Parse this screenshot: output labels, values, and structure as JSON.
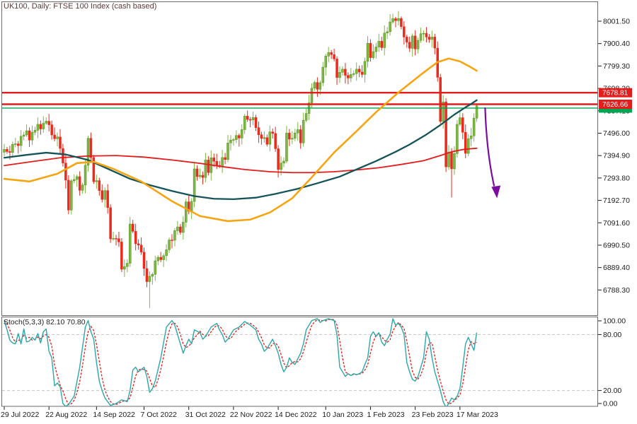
{
  "window": {
    "title": "UK100, Daily:  FTSE 100 Index (cash based)"
  },
  "stoch": {
    "label": "Stoch(5,3,3) 82.10 70.80"
  },
  "colors": {
    "bull": "#7db843",
    "bull_border": "#538c1e",
    "bear": "#e92a1c",
    "ma_orange": "#f7a411",
    "ma_teal": "#155459",
    "ma_red": "#e31c1c",
    "level": "#e31c1c",
    "bid": "#00a651",
    "stoch_k": "#2ba8a8",
    "stoch_d": "#e31c1c",
    "grid": "#c4c4c4",
    "border": "#6b6b6b",
    "text": "#1b1b1b",
    "arrow": "#7b0ca1",
    "tag_text": "#ffffff"
  },
  "price_axis": {
    "ticks": [
      "8001.50",
      "7900.40",
      "7799.30",
      "7698.20",
      "7597.10",
      "7496.00",
      "7394.90",
      "7293.80",
      "7192.70",
      "7091.60",
      "6990.50",
      "6889.40",
      "6788.30"
    ]
  },
  "stoch_axis": {
    "ticks": [
      {
        "label": "100.00",
        "v": 100
      },
      {
        "label": "80.00",
        "v": 80
      },
      {
        "label": "20.00",
        "v": 20
      },
      {
        "label": "0.00",
        "v": 0
      }
    ]
  },
  "time_axis": [
    {
      "label": "29 Jul 2022",
      "i": 0
    },
    {
      "label": "22 Aug 2022",
      "i": 16
    },
    {
      "label": "14 Sep 2022",
      "i": 33
    },
    {
      "label": "7 Oct 2022",
      "i": 50
    },
    {
      "label": "31 Oct 2022",
      "i": 66
    },
    {
      "label": "22 Nov 2022",
      "i": 82
    },
    {
      "label": "14 Dec 2022",
      "i": 98
    },
    {
      "label": "10 Jan 2023",
      "i": 115
    },
    {
      "label": "1 Feb 2023",
      "i": 131
    },
    {
      "label": "23 Feb 2023",
      "i": 147
    },
    {
      "label": "17 Mar 2023",
      "i": 163
    }
  ],
  "chart_data": [
    {
      "type": "candlestick",
      "symbol": "UK100",
      "timeframe": "Daily",
      "description": "FTSE 100 Index (cash based)",
      "ylim": [
        6672,
        8090
      ],
      "first_open": 7410,
      "closes": [
        7423,
        7413,
        7409,
        7446,
        7448,
        7440,
        7482,
        7488,
        7507,
        7465,
        7500,
        7509,
        7536,
        7515,
        7541,
        7550,
        7534,
        7488,
        7471,
        7479,
        7427,
        7361,
        7284,
        7149,
        7281,
        7287,
        7300,
        7238,
        7262,
        7351,
        7473,
        7386,
        7277,
        7282,
        7237,
        7197,
        7237,
        7160,
        7019,
        7021,
        7020,
        7005,
        6882,
        6894,
        6909,
        7086,
        7053,
        6997,
        6991,
        6959,
        6885,
        6826,
        6850,
        6859,
        6920,
        6936,
        6925,
        6943,
        6970,
        7014,
        7013,
        7056,
        7073,
        7048,
        7094,
        7186,
        7144,
        7188,
        7335,
        7300,
        7306,
        7296,
        7375,
        7318,
        7385,
        7369,
        7351,
        7346,
        7386,
        7377,
        7452,
        7465,
        7467,
        7486,
        7474,
        7512,
        7573,
        7558,
        7556,
        7567,
        7521,
        7489,
        7472,
        7476,
        7446,
        7502,
        7495,
        7426,
        7332,
        7361,
        7370,
        7497,
        7469,
        7473,
        7497,
        7512,
        7452,
        7554,
        7585,
        7633,
        7699,
        7725,
        7694,
        7724,
        7794,
        7844,
        7860,
        7851,
        7831,
        7747,
        7771,
        7785,
        7757,
        7745,
        7761,
        7765,
        7785,
        7772,
        7761,
        7820,
        7902,
        7837,
        7864,
        7885,
        7911,
        7882,
        7948,
        7954,
        7998,
        8013,
        8004,
        8014,
        7977,
        7930,
        7907,
        7879,
        7935,
        7876,
        7915,
        7945,
        7947,
        7930,
        7919,
        7930,
        7880,
        7748,
        7549,
        7637,
        7344,
        7410,
        7335,
        7404,
        7536,
        7566,
        7500,
        7405,
        7471,
        7484,
        7564,
        7620
      ],
      "wick_overrides": {
        "23": {
          "low": 7130
        },
        "52": {
          "low": 6707
        },
        "141": {
          "high": 8047
        },
        "160": {
          "low": 7206
        }
      },
      "h_levels": [
        7678.81,
        7626.66
      ],
      "price_tag_labels": [
        "7678.81",
        "7626.66"
      ],
      "bid_line": 7609.4,
      "ma": {
        "orange": [
          [
            0,
            7290
          ],
          [
            9,
            7278
          ],
          [
            19,
            7313
          ],
          [
            26,
            7361
          ],
          [
            32,
            7367
          ],
          [
            39,
            7335
          ],
          [
            49,
            7278
          ],
          [
            60,
            7189
          ],
          [
            70,
            7122
          ],
          [
            80,
            7099
          ],
          [
            88,
            7106
          ],
          [
            95,
            7138
          ],
          [
            103,
            7202
          ],
          [
            110,
            7297
          ],
          [
            118,
            7409
          ],
          [
            126,
            7505
          ],
          [
            133,
            7591
          ],
          [
            141,
            7680
          ],
          [
            149,
            7760
          ],
          [
            155,
            7817
          ],
          [
            159,
            7833
          ],
          [
            163,
            7820
          ],
          [
            166,
            7800
          ],
          [
            169,
            7778
          ]
        ],
        "teal": [
          [
            0,
            7385
          ],
          [
            8,
            7398
          ],
          [
            15,
            7408
          ],
          [
            22,
            7400
          ],
          [
            30,
            7375
          ],
          [
            38,
            7330
          ],
          [
            45,
            7290
          ],
          [
            52,
            7262
          ],
          [
            60,
            7235
          ],
          [
            68,
            7212
          ],
          [
            75,
            7200
          ],
          [
            82,
            7198
          ],
          [
            90,
            7205
          ],
          [
            97,
            7222
          ],
          [
            105,
            7245
          ],
          [
            112,
            7270
          ],
          [
            120,
            7300
          ],
          [
            127,
            7338
          ],
          [
            133,
            7370
          ],
          [
            140,
            7412
          ],
          [
            145,
            7445
          ],
          [
            151,
            7490
          ],
          [
            156,
            7533
          ],
          [
            161,
            7580
          ],
          [
            165,
            7613
          ],
          [
            167,
            7628
          ],
          [
            169,
            7645
          ]
        ],
        "red": [
          [
            0,
            7350
          ],
          [
            10,
            7368
          ],
          [
            20,
            7385
          ],
          [
            30,
            7393
          ],
          [
            40,
            7395
          ],
          [
            50,
            7388
          ],
          [
            60,
            7375
          ],
          [
            70,
            7360
          ],
          [
            78,
            7345
          ],
          [
            86,
            7332
          ],
          [
            95,
            7322
          ],
          [
            103,
            7318
          ],
          [
            110,
            7318
          ],
          [
            118,
            7322
          ],
          [
            126,
            7330
          ],
          [
            134,
            7340
          ],
          [
            142,
            7355
          ],
          [
            150,
            7372
          ],
          [
            156,
            7395
          ],
          [
            160,
            7412
          ],
          [
            164,
            7422
          ],
          [
            167,
            7426
          ],
          [
            169,
            7428
          ]
        ]
      },
      "arrow": {
        "from": {
          "i": 172,
          "price": 7612
        },
        "to": {
          "i": 176,
          "price": 7212
        }
      }
    },
    {
      "type": "line",
      "name": "Stoch(5,3,3)",
      "k_current": 82.1,
      "d_current": 70.8,
      "levels": [
        100,
        80,
        20,
        0
      ],
      "k_anchors": [
        [
          0,
          95
        ],
        [
          1,
          85
        ],
        [
          2,
          74
        ],
        [
          3,
          71
        ],
        [
          4,
          70
        ],
        [
          5,
          81
        ],
        [
          6,
          70
        ],
        [
          7,
          86
        ],
        [
          8,
          72
        ],
        [
          9,
          73
        ],
        [
          10,
          77
        ],
        [
          11,
          74
        ],
        [
          12,
          81
        ],
        [
          13,
          71
        ],
        [
          14,
          83
        ],
        [
          15,
          86
        ],
        [
          16,
          62
        ],
        [
          17,
          55
        ],
        [
          18,
          25
        ],
        [
          19,
          28
        ],
        [
          20,
          24
        ],
        [
          21,
          6
        ],
        [
          22,
          3
        ],
        [
          23,
          5
        ],
        [
          25,
          14
        ],
        [
          27,
          45
        ],
        [
          29,
          88
        ],
        [
          30,
          95
        ],
        [
          31,
          83
        ],
        [
          32,
          75
        ],
        [
          33,
          50
        ],
        [
          34,
          30
        ],
        [
          35,
          20
        ],
        [
          36,
          12
        ],
        [
          38,
          4
        ],
        [
          40,
          6
        ],
        [
          42,
          10
        ],
        [
          44,
          8
        ],
        [
          45,
          20
        ],
        [
          46,
          42
        ],
        [
          47,
          45
        ],
        [
          48,
          40
        ],
        [
          50,
          45
        ],
        [
          51,
          35
        ],
        [
          52,
          18
        ],
        [
          53,
          22
        ],
        [
          54,
          30
        ],
        [
          56,
          55
        ],
        [
          58,
          88
        ],
        [
          60,
          95
        ],
        [
          61,
          90
        ],
        [
          62,
          80
        ],
        [
          63,
          70
        ],
        [
          64,
          60
        ],
        [
          65,
          68
        ],
        [
          66,
          75
        ],
        [
          67,
          70
        ],
        [
          68,
          85
        ],
        [
          70,
          82
        ],
        [
          71,
          75
        ],
        [
          72,
          78
        ],
        [
          74,
          88
        ],
        [
          76,
          92
        ],
        [
          77,
          85
        ],
        [
          78,
          80
        ],
        [
          79,
          72
        ],
        [
          80,
          75
        ],
        [
          82,
          85
        ],
        [
          84,
          88
        ],
        [
          86,
          94
        ],
        [
          88,
          90
        ],
        [
          90,
          85
        ],
        [
          91,
          75
        ],
        [
          92,
          70
        ],
        [
          93,
          62
        ],
        [
          94,
          65
        ],
        [
          96,
          75
        ],
        [
          97,
          68
        ],
        [
          98,
          60
        ],
        [
          99,
          48
        ],
        [
          100,
          40
        ],
        [
          101,
          45
        ],
        [
          102,
          55
        ],
        [
          103,
          50
        ],
        [
          104,
          48
        ],
        [
          106,
          60
        ],
        [
          107,
          70
        ],
        [
          108,
          85
        ],
        [
          110,
          95
        ],
        [
          112,
          97
        ],
        [
          113,
          93
        ],
        [
          114,
          95
        ],
        [
          116,
          97
        ],
        [
          118,
          95
        ],
        [
          119,
          80
        ],
        [
          120,
          45
        ],
        [
          121,
          40
        ],
        [
          122,
          35
        ],
        [
          123,
          38
        ],
        [
          124,
          36
        ],
        [
          125,
          38
        ],
        [
          126,
          37
        ],
        [
          127,
          38
        ],
        [
          128,
          40
        ],
        [
          129,
          48
        ],
        [
          130,
          55
        ],
        [
          131,
          78
        ],
        [
          132,
          83
        ],
        [
          133,
          78
        ],
        [
          134,
          82
        ],
        [
          135,
          72
        ],
        [
          136,
          68
        ],
        [
          137,
          75
        ],
        [
          138,
          80
        ],
        [
          139,
          97
        ],
        [
          140,
          90
        ],
        [
          141,
          92
        ],
        [
          142,
          88
        ],
        [
          143,
          80
        ],
        [
          144,
          50
        ],
        [
          145,
          40
        ],
        [
          146,
          32
        ],
        [
          147,
          30
        ],
        [
          148,
          35
        ],
        [
          149,
          45
        ],
        [
          150,
          55
        ],
        [
          151,
          83
        ],
        [
          152,
          75
        ],
        [
          153,
          55
        ],
        [
          154,
          40
        ],
        [
          155,
          30
        ],
        [
          156,
          20
        ],
        [
          157,
          8
        ],
        [
          158,
          2
        ],
        [
          159,
          6
        ],
        [
          160,
          12
        ],
        [
          161,
          10
        ],
        [
          162,
          14
        ],
        [
          163,
          22
        ],
        [
          164,
          45
        ],
        [
          165,
          70
        ],
        [
          166,
          77
        ],
        [
          167,
          70
        ],
        [
          168,
          63
        ],
        [
          169,
          82
        ]
      ]
    }
  ]
}
